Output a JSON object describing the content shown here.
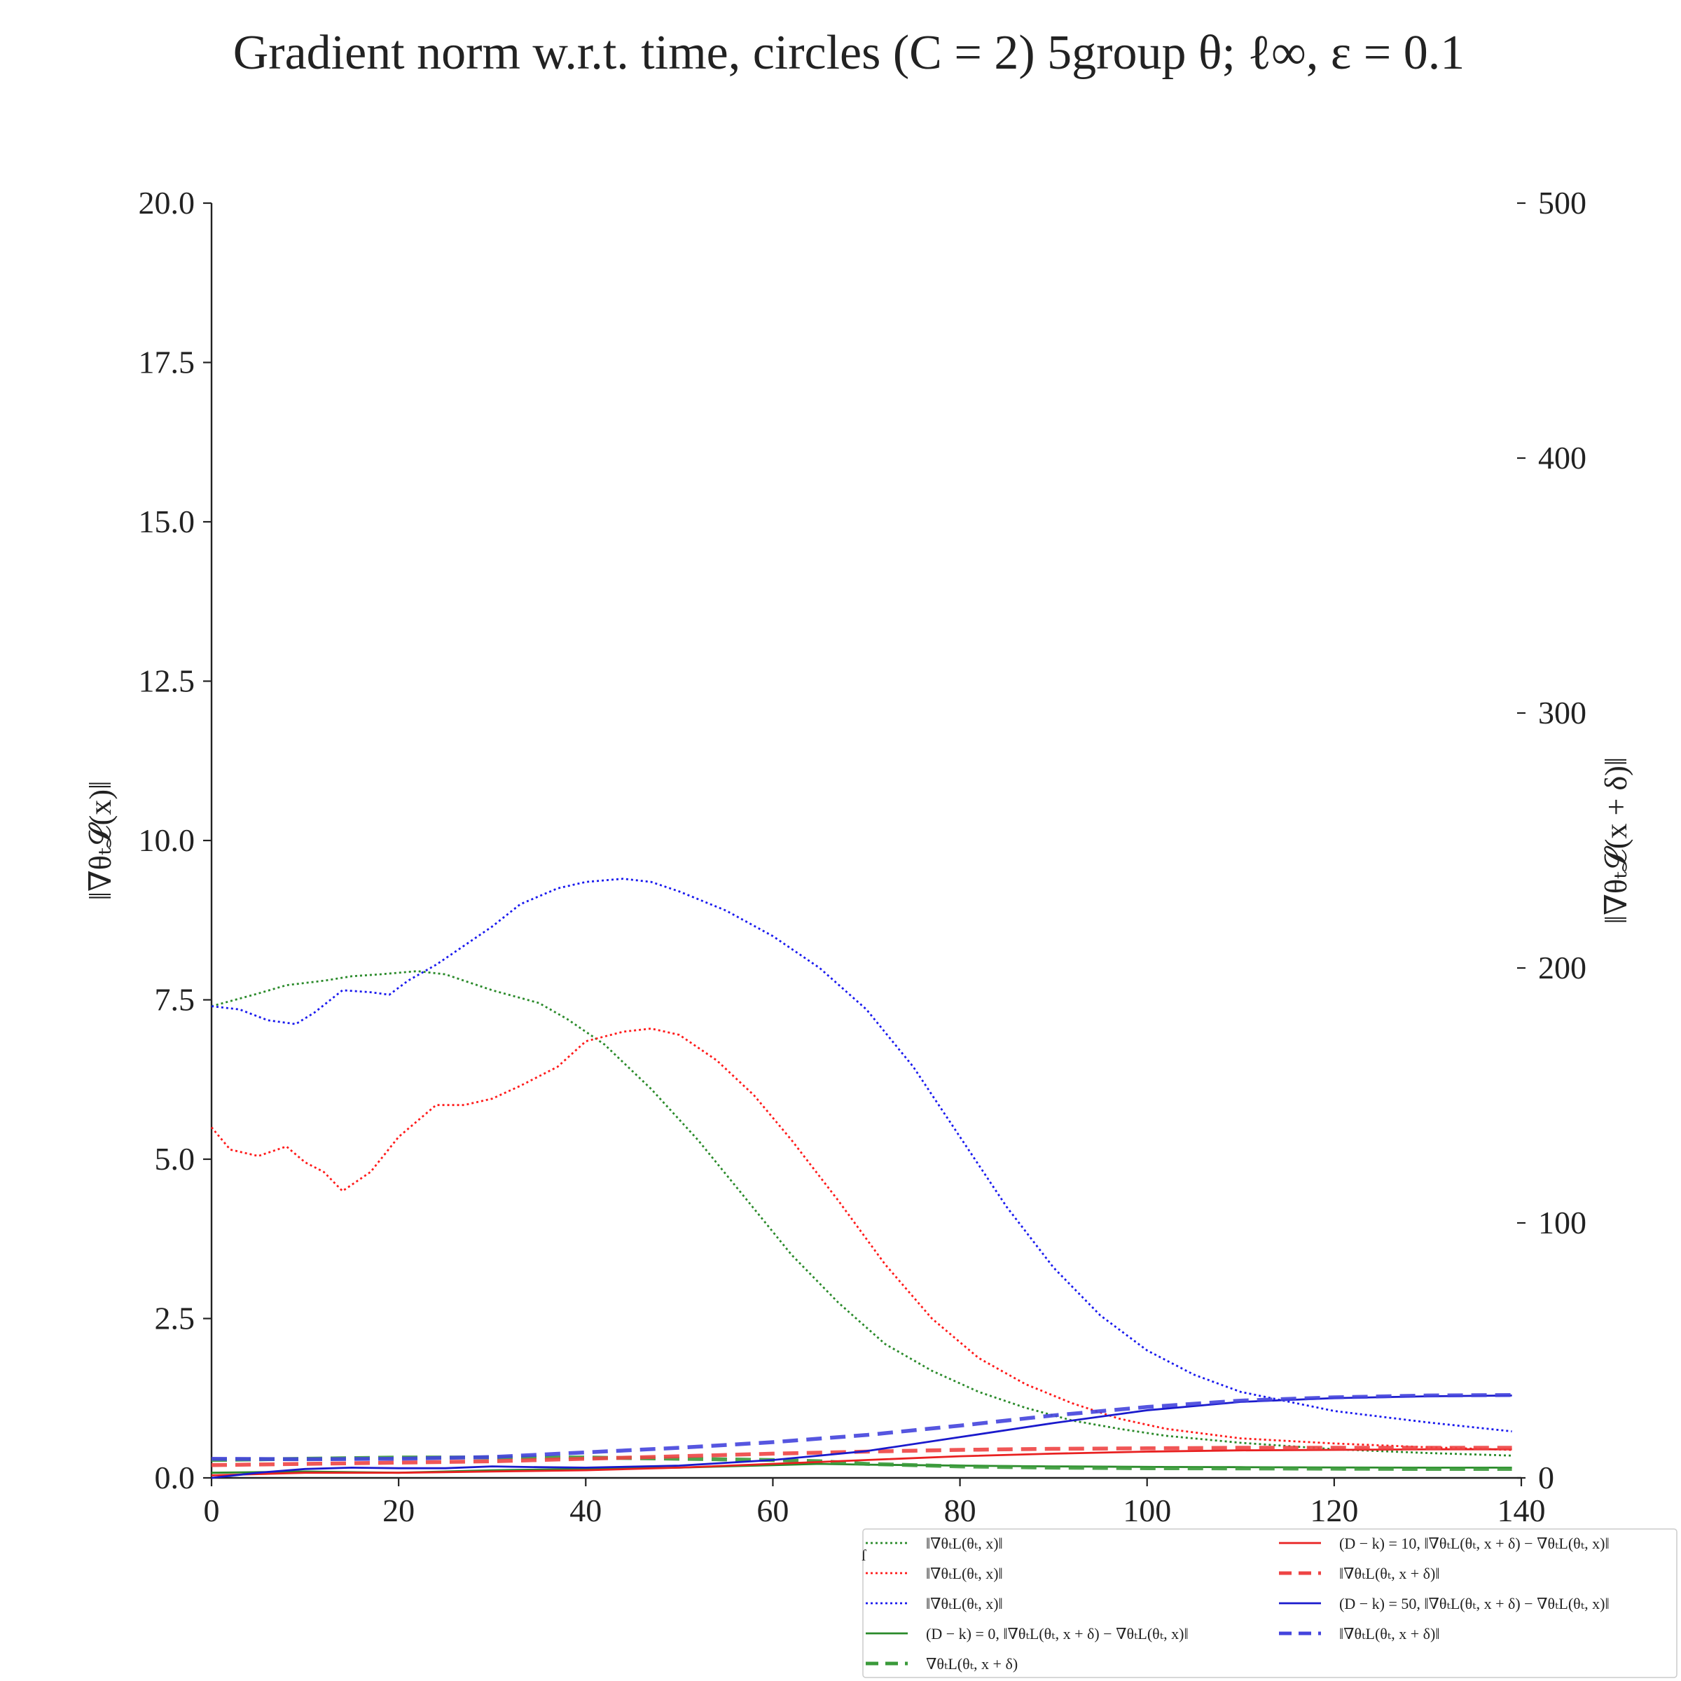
{
  "chart_data": {
    "type": "line",
    "title": "Gradient norm w.r.t. time, circles (C = 2) 5group θ; ℓ∞, ε = 0.1",
    "xlabel": "",
    "ylabel": "‖∇θₜ𝓛(x)‖",
    "y2label": "‖∇θₜ𝓛(x + δ)‖",
    "xlim": [
      0,
      140
    ],
    "ylim": [
      0,
      20
    ],
    "y2lim": [
      0,
      500
    ],
    "xticks": [
      "0",
      "20",
      "40",
      "60",
      "80",
      "100",
      "120",
      "140"
    ],
    "yticks": [
      "0.0",
      "2.5",
      "5.0",
      "7.5",
      "10.0",
      "12.5",
      "15.0",
      "17.5",
      "20.0"
    ],
    "y2ticks": [
      "0",
      "100",
      "200",
      "300",
      "400",
      "500"
    ],
    "grid": false,
    "legend_position": "bottom-right, below axes",
    "series": [
      {
        "name": "‖∇θₜL(θₜ, x)‖",
        "color": "#2a8a2a",
        "style": "dotted",
        "axis": "left",
        "x": [
          0,
          5,
          8,
          12,
          15,
          18,
          22,
          25,
          30,
          35,
          38,
          42,
          47,
          52,
          57,
          62,
          67,
          72,
          77,
          82,
          87,
          92,
          97,
          102,
          110,
          120,
          130,
          139
        ],
        "y": [
          7.4,
          7.6,
          7.73,
          7.8,
          7.87,
          7.9,
          7.95,
          7.9,
          7.65,
          7.45,
          7.2,
          6.8,
          6.1,
          5.3,
          4.4,
          3.5,
          2.75,
          2.1,
          1.68,
          1.35,
          1.1,
          0.9,
          0.77,
          0.66,
          0.55,
          0.45,
          0.39,
          0.35
        ]
      },
      {
        "name": "‖∇θₜL(θₜ, x)‖",
        "color": "#ff1a1a",
        "style": "dotted",
        "axis": "left",
        "x": [
          0,
          2,
          5,
          8,
          10,
          12,
          14,
          17,
          20,
          24,
          27,
          30,
          33,
          37,
          40,
          44,
          47,
          50,
          54,
          58,
          62,
          67,
          72,
          77,
          82,
          87,
          92,
          97,
          102,
          110,
          120,
          130,
          139
        ],
        "y": [
          5.5,
          5.15,
          5.05,
          5.2,
          4.95,
          4.8,
          4.5,
          4.8,
          5.35,
          5.85,
          5.85,
          5.95,
          6.15,
          6.45,
          6.85,
          7.0,
          7.05,
          6.95,
          6.55,
          6.0,
          5.3,
          4.35,
          3.35,
          2.5,
          1.88,
          1.47,
          1.17,
          0.93,
          0.77,
          0.62,
          0.54,
          0.48,
          0.44
        ]
      },
      {
        "name": "‖∇θₜL(θₜ, x)‖",
        "color": "#1a1aee",
        "style": "dotted",
        "axis": "left",
        "x": [
          0,
          3,
          6,
          9,
          11,
          14,
          17,
          19,
          21,
          24,
          27,
          30,
          33,
          37,
          40,
          44,
          47,
          50,
          55,
          60,
          65,
          70,
          75,
          80,
          85,
          90,
          95,
          100,
          105,
          110,
          120,
          130,
          139
        ],
        "y": [
          7.4,
          7.35,
          7.18,
          7.12,
          7.3,
          7.65,
          7.62,
          7.58,
          7.8,
          8.05,
          8.35,
          8.65,
          9.0,
          9.25,
          9.35,
          9.4,
          9.35,
          9.2,
          8.9,
          8.5,
          8.0,
          7.35,
          6.45,
          5.35,
          4.25,
          3.3,
          2.55,
          2.0,
          1.62,
          1.35,
          1.05,
          0.87,
          0.73
        ]
      },
      {
        "name": "(D − k) = 0, ‖∇θₜL(θₜ, x + δ) − ∇θₜL(θₜ, x)‖",
        "color": "#2a8a2a",
        "style": "solid",
        "axis": "right",
        "x": [
          0,
          10,
          20,
          30,
          40,
          50,
          60,
          65,
          70,
          80,
          90,
          100,
          110,
          120,
          130,
          139
        ],
        "y": [
          2,
          2.5,
          2,
          3,
          3.5,
          4,
          5,
          5.5,
          5.2,
          4.8,
          4.5,
          4.3,
          4.2,
          4.1,
          4,
          4
        ]
      },
      {
        "name": "∇θₜL(θₜ, x + δ)",
        "color": "#3a9a3a",
        "style": "dashed",
        "axis": "right",
        "x": [
          0,
          10,
          20,
          30,
          40,
          50,
          60,
          65,
          70,
          80,
          90,
          100,
          110,
          120,
          130,
          139
        ],
        "y": [
          7,
          7.5,
          8,
          8,
          8,
          7.5,
          7,
          6.5,
          5.5,
          4.5,
          4,
          3.8,
          3.7,
          3.6,
          3.5,
          3.5
        ]
      },
      {
        "name": "(D − k) = 10, ‖∇θₜL(θₜ, x + δ) − ∇θₜL(θₜ, x)‖",
        "color": "#e82020",
        "style": "solid",
        "axis": "right",
        "x": [
          0,
          10,
          20,
          30,
          40,
          50,
          60,
          70,
          80,
          90,
          100,
          110,
          120,
          130,
          139
        ],
        "y": [
          1,
          2,
          2,
          2.5,
          3,
          4,
          5.5,
          7,
          8.5,
          9.5,
          10.3,
          10.8,
          11,
          11.2,
          11.2
        ]
      },
      {
        "name": "‖∇θₜL(θₜ, x + δ)‖",
        "color": "#ee4444",
        "style": "dashed",
        "axis": "right",
        "x": [
          0,
          10,
          20,
          30,
          40,
          50,
          60,
          70,
          80,
          90,
          100,
          110,
          120,
          130,
          139
        ],
        "y": [
          5,
          5.5,
          6,
          6.5,
          7.5,
          8.5,
          9.5,
          10.3,
          11,
          11.4,
          11.6,
          11.8,
          11.8,
          11.8,
          11.8
        ]
      },
      {
        "name": "(D − k) = 50, ‖∇θₜL(θₜ, x + δ) − ∇θₜL(θₜ, x)‖",
        "color": "#1a1acc",
        "style": "solid",
        "axis": "right",
        "x": [
          0,
          5,
          10,
          15,
          20,
          25,
          30,
          35,
          40,
          50,
          60,
          70,
          80,
          90,
          100,
          110,
          120,
          130,
          139
        ],
        "y": [
          0,
          2,
          3.5,
          4,
          3.8,
          3.8,
          4.5,
          4.2,
          4,
          4.8,
          7,
          10.5,
          16,
          21.5,
          26.5,
          29.8,
          31.3,
          32,
          32.3
        ]
      },
      {
        "name": "‖∇θₜL(θₜ, x + δ)‖",
        "color": "#4444dd",
        "style": "dashed",
        "axis": "right",
        "x": [
          0,
          10,
          20,
          30,
          40,
          50,
          60,
          70,
          80,
          90,
          100,
          110,
          120,
          130,
          139
        ],
        "y": [
          7.5,
          7.3,
          7.5,
          8.2,
          10,
          11.8,
          14,
          16.8,
          20.5,
          24.5,
          27.8,
          30.3,
          31.6,
          32.3,
          32.5
        ]
      }
    ]
  },
  "legend_stray_mark": "ſ"
}
